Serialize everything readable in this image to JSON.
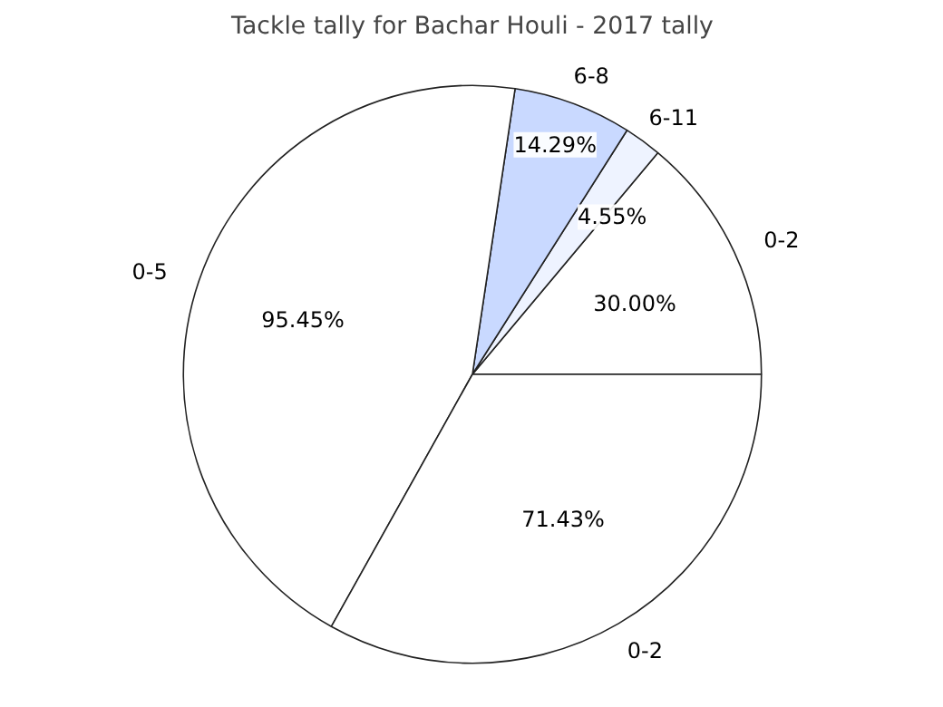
{
  "chart_data": {
    "type": "pie",
    "title": "Tackle tally for Bachar Houli - 2017 tally",
    "categories": [
      "0-2",
      "6-11",
      "6-8",
      "0-5",
      "0-2"
    ],
    "values": [
      30.0,
      4.55,
      14.29,
      95.45,
      71.43
    ],
    "value_labels": [
      "30.00%",
      "4.55%",
      "14.29%",
      "95.45%",
      "71.43%"
    ],
    "colors": [
      "#ffffff",
      "#eef3ff",
      "#c9d9ff",
      "#ffffff",
      "#ffffff"
    ]
  }
}
